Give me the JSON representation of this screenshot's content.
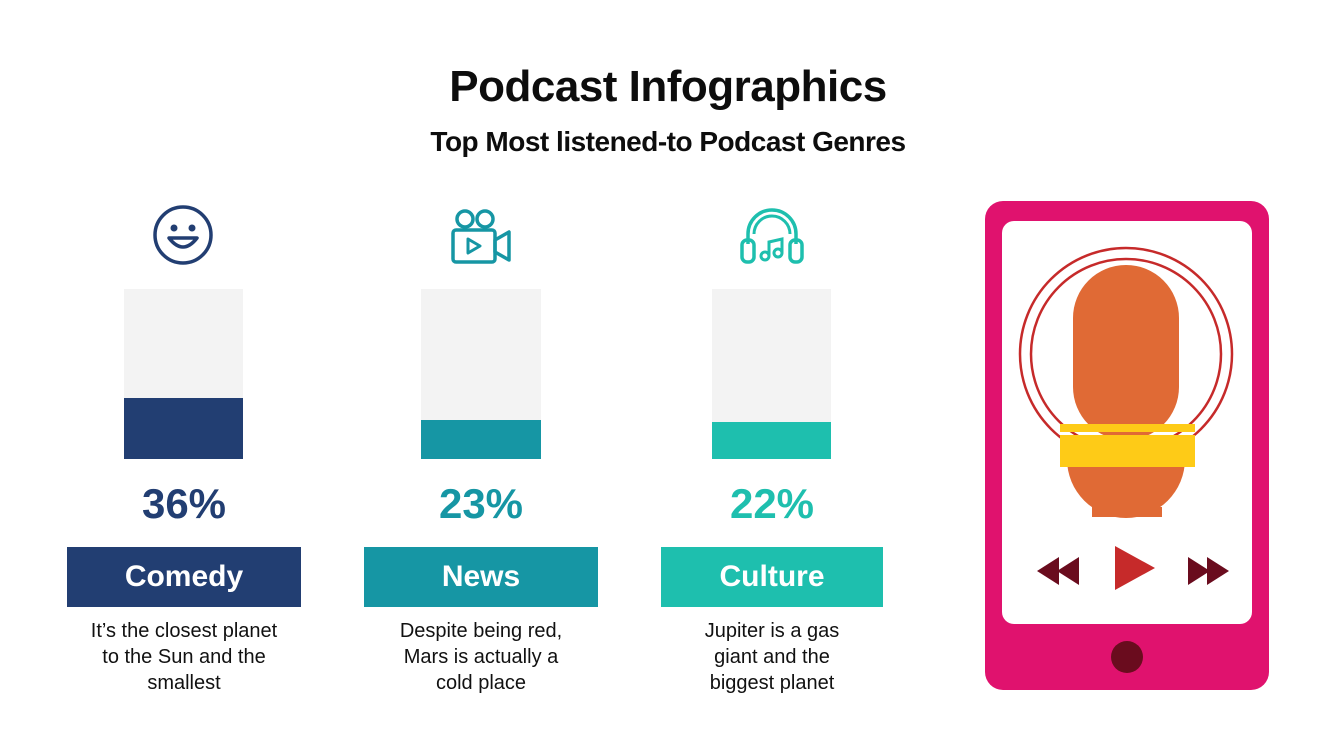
{
  "header": {
    "title": "Podcast Infographics",
    "subtitle": "Top Most listened-to Podcast Genres"
  },
  "chart_data": {
    "type": "bar",
    "title": "Podcast Infographics",
    "subtitle": "Top Most listened-to Podcast Genres",
    "categories": [
      "Comedy",
      "News",
      "Culture"
    ],
    "values": [
      36,
      23,
      22
    ],
    "unit": "%",
    "ylim": [
      0,
      100
    ],
    "items": [
      {
        "category": "Comedy",
        "value": 36,
        "value_label": "36%",
        "description": [
          "It’s the closest planet",
          "to the Sun and the",
          "smallest"
        ],
        "icon": "smiley-face-icon",
        "color": "#223e72"
      },
      {
        "category": "News",
        "value": 23,
        "value_label": "23%",
        "description": [
          "Despite being red,",
          "Mars is actually a",
          "cold place"
        ],
        "icon": "video-camera-icon",
        "color": "#1696a4"
      },
      {
        "category": "Culture",
        "value": 22,
        "value_label": "22%",
        "description": [
          "Jupiter is a gas",
          "giant and the",
          "biggest planet"
        ],
        "icon": "headphones-music-icon",
        "color": "#1ebfae"
      }
    ]
  },
  "illustration": {
    "phone_color": "#e0126e",
    "microphone_color": "#e06a35",
    "clamp_color": "#fecb17",
    "ring_color": "#c62a2a",
    "player_icons": [
      "rewind-icon",
      "play-icon",
      "fast-forward-icon"
    ]
  }
}
